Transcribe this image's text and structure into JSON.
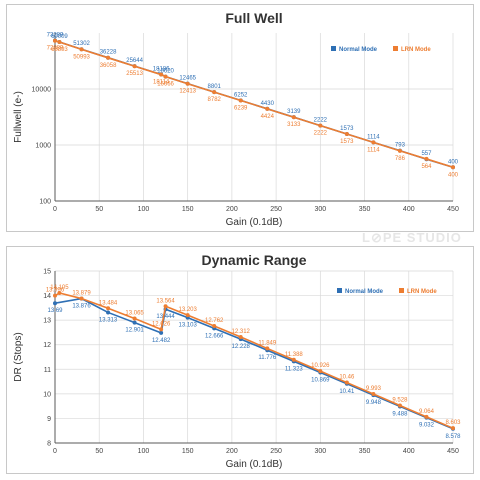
{
  "watermark": "L⊘PE STUDIO",
  "colors": {
    "normal": "#2e6fb4",
    "lrn": "#ed7d31",
    "grid": "#d9d9d9",
    "axis": "#595959"
  },
  "chart_data": [
    {
      "type": "line",
      "title": "Full Well",
      "xlabel": "Gain (0.1dB)",
      "ylabel": "Fullwell (e-)",
      "yscale": "log",
      "xlim": [
        0,
        450
      ],
      "ylim": [
        100,
        100000
      ],
      "xticks": [
        "0",
        "50",
        "100",
        "150",
        "200",
        "250",
        "300",
        "350",
        "400",
        "450"
      ],
      "yticks": [
        "100",
        "1000",
        "10000"
      ],
      "legend": "top-right",
      "grid": true,
      "series": [
        {
          "name": "Normal Mode",
          "x": [
            0,
            5,
            30,
            60,
            90,
            120,
            125,
            150,
            180,
            210,
            240,
            270,
            300,
            330,
            360,
            390,
            420,
            450
          ],
          "values": [
            73289,
            69009,
            51302,
            36228,
            25644,
            18186,
            16620,
            12465,
            8801,
            6252,
            4430,
            3139,
            2222,
            1573,
            1114,
            793,
            557,
            400
          ],
          "labels": [
            "73289",
            "69009",
            "51302",
            "36228",
            "25644",
            "18186",
            "16620",
            "12465",
            "8801",
            "6252",
            "4430",
            "3139",
            "2222",
            "1573",
            "1114",
            "793",
            "557",
            "400"
          ]
        },
        {
          "name": "LRN Mode",
          "x": [
            0,
            5,
            30,
            60,
            90,
            120,
            125,
            150,
            180,
            210,
            240,
            270,
            300,
            330,
            360,
            390,
            420,
            450
          ],
          "values": [
            72889,
            68893,
            50993,
            36058,
            25513,
            18114,
            16666,
            12413,
            8782,
            6239,
            4424,
            3133,
            2222,
            1573,
            1114,
            786,
            564,
            400
          ],
          "labels": [
            "72889",
            "68893",
            "50993",
            "36058",
            "25513",
            "18114",
            "16666",
            "12413",
            "8782",
            "6239",
            "4424",
            "3133",
            "2222",
            "1573",
            "1114",
            "786",
            "564",
            "400"
          ]
        }
      ]
    },
    {
      "type": "line",
      "title": "Dynamic Range",
      "xlabel": "Gain (0.1dB)",
      "ylabel": "DR (Stops)",
      "xlim": [
        0,
        450
      ],
      "ylim": [
        8,
        15
      ],
      "xticks": [
        "0",
        "50",
        "100",
        "150",
        "200",
        "250",
        "300",
        "350",
        "400",
        "450"
      ],
      "yticks": [
        "8",
        "9",
        "10",
        "11",
        "12",
        "13",
        "14",
        "15"
      ],
      "legend": "top-right",
      "grid": true,
      "series": [
        {
          "name": "Normal Mode",
          "x": [
            0,
            30,
            60,
            90,
            120,
            125,
            150,
            180,
            210,
            240,
            270,
            300,
            330,
            360,
            390,
            420,
            450
          ],
          "values": [
            13.69,
            13.876,
            13.313,
            12.901,
            12.482,
            13.444,
            13.103,
            12.666,
            12.228,
            11.776,
            11.323,
            10.869,
            10.41,
            9.948,
            9.488,
            9.032,
            8.578
          ],
          "labels": [
            "13.69",
            "13.876",
            "13.313",
            "12.901",
            "12.482",
            "13.444",
            "13.103",
            "12.666",
            "12.228",
            "11.776",
            "11.323",
            "10.869",
            "10.41",
            "9.948",
            "9.488",
            "9.032",
            "8.578"
          ]
        },
        {
          "name": "LRN Mode",
          "x": [
            0,
            5,
            30,
            60,
            90,
            120,
            125,
            150,
            180,
            210,
            240,
            270,
            300,
            330,
            360,
            390,
            420,
            450
          ],
          "values": [
            13.996,
            14.105,
            13.879,
            13.484,
            13.065,
            12.626,
            13.564,
            13.203,
            12.762,
            12.312,
            11.849,
            11.388,
            10.926,
            10.46,
            9.993,
            9.528,
            9.064,
            8.603
          ],
          "labels": [
            "13.996",
            "14.105",
            "13.879",
            "13.484",
            "13.065",
            "12.626",
            "13.564",
            "13.203",
            "12.762",
            "12.312",
            "11.849",
            "11.388",
            "10.926",
            "10.46",
            "9.993",
            "9.528",
            "9.064",
            "8.603"
          ]
        }
      ]
    }
  ]
}
